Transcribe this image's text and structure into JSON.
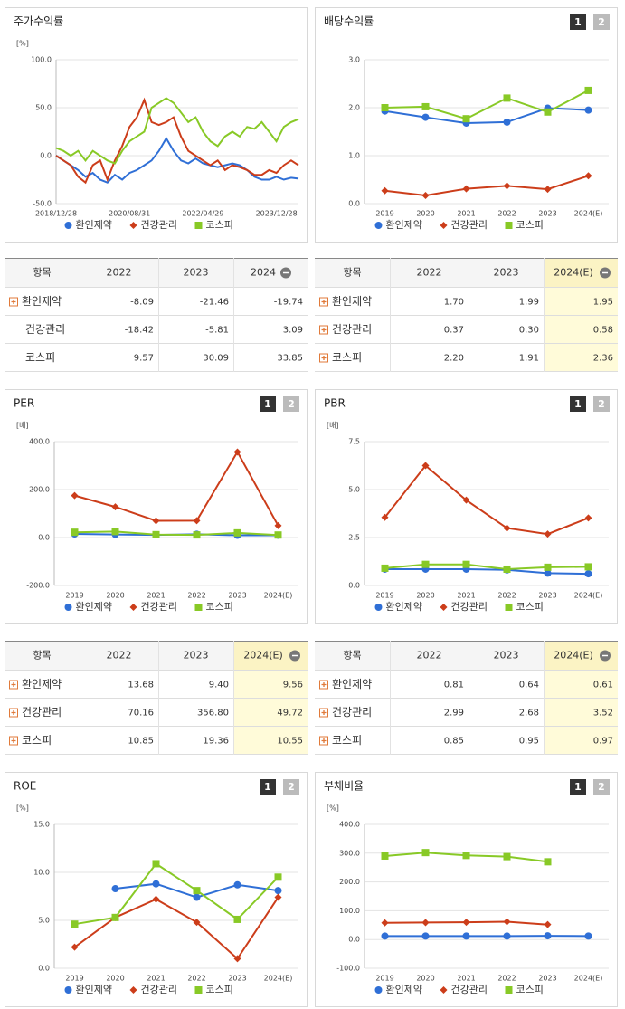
{
  "chart_data": [
    {
      "type": "line",
      "title": "주가수익률",
      "unit": "[%]",
      "categories": [
        "2018/12/28",
        null,
        null,
        null,
        null,
        null,
        null,
        null,
        null,
        null,
        "2020/08/31",
        null,
        null,
        null,
        null,
        null,
        null,
        null,
        null,
        null,
        "2022/04/29",
        null,
        null,
        null,
        null,
        null,
        null,
        null,
        null,
        null,
        "2023/12/28",
        null,
        null,
        null
      ],
      "series": [
        {
          "name": "환인제약",
          "color": "#2f6fd6",
          "values": [
            0,
            -5,
            -10,
            -15,
            -22,
            -18,
            -25,
            -28,
            -20,
            -25,
            -18,
            -15,
            -10,
            -5,
            5,
            18,
            5,
            -5,
            -8,
            -3,
            -8,
            -10,
            -12,
            -10,
            -8,
            -10,
            -15,
            -22,
            -25,
            -25,
            -22,
            -25,
            -23,
            -24
          ]
        },
        {
          "name": "건강관리",
          "color": "#cc3d1a",
          "values": [
            0,
            -5,
            -10,
            -22,
            -28,
            -10,
            -5,
            -25,
            -5,
            10,
            30,
            40,
            58,
            35,
            32,
            35,
            40,
            20,
            5,
            0,
            -5,
            -10,
            -5,
            -15,
            -10,
            -12,
            -15,
            -20,
            -20,
            -15,
            -18,
            -10,
            -5,
            -10
          ]
        },
        {
          "name": "코스피",
          "color": "#88c926",
          "values": [
            8,
            5,
            0,
            5,
            -5,
            5,
            0,
            -5,
            -8,
            5,
            15,
            20,
            25,
            50,
            55,
            60,
            55,
            45,
            35,
            40,
            25,
            15,
            10,
            20,
            25,
            20,
            30,
            28,
            35,
            25,
            15,
            30,
            35,
            38
          ]
        }
      ],
      "ylim": [
        -50,
        100
      ],
      "yticks": [
        {
          "value": -50,
          "label": "-50.0"
        },
        {
          "value": 0,
          "label": "0.0"
        },
        {
          "value": 50,
          "label": "50.0"
        },
        {
          "value": 100,
          "label": "100.0"
        }
      ],
      "markers": false,
      "legend": "bottom"
    },
    {
      "type": "line",
      "title": "배당수익률",
      "buttons": [
        "1",
        "2"
      ],
      "categories": [
        "2019",
        "2020",
        "2021",
        "2022",
        "2023",
        "2024(E)"
      ],
      "series": [
        {
          "name": "환인제약",
          "color": "#2f6fd6",
          "values": [
            1.93,
            1.8,
            1.68,
            1.7,
            1.99,
            1.95
          ]
        },
        {
          "name": "건강관리",
          "color": "#cc3d1a",
          "values": [
            0.27,
            0.17,
            0.31,
            0.37,
            0.3,
            0.58
          ]
        },
        {
          "name": "코스피",
          "color": "#88c926",
          "values": [
            2.0,
            2.02,
            1.77,
            2.2,
            1.91,
            2.36
          ]
        }
      ],
      "ylim": [
        0,
        3
      ],
      "yticks": [
        {
          "value": 0,
          "label": "0.0"
        },
        {
          "value": 1,
          "label": "1.0"
        },
        {
          "value": 2,
          "label": "2.0"
        },
        {
          "value": 3,
          "label": "3.0"
        }
      ],
      "markers": true,
      "legend": "bottom"
    },
    {
      "type": "line",
      "title": "PER",
      "unit": "[배]",
      "buttons": [
        "1",
        "2"
      ],
      "categories": [
        "2019",
        "2020",
        "2021",
        "2022",
        "2023",
        "2024(E)"
      ],
      "series": [
        {
          "name": "환인제약",
          "color": "#2f6fd6",
          "values": [
            15,
            13,
            11,
            13.68,
            9.4,
            9.56
          ]
        },
        {
          "name": "건강관리",
          "color": "#cc3d1a",
          "values": [
            175,
            128,
            70,
            70.16,
            356.8,
            49.72
          ]
        },
        {
          "name": "코스피",
          "color": "#88c926",
          "values": [
            22,
            25,
            12,
            10.85,
            19.36,
            10.55
          ]
        }
      ],
      "ylim": [
        -200,
        400
      ],
      "yticks": [
        {
          "value": -200,
          "label": "-200.0"
        },
        {
          "value": 0,
          "label": "0.0"
        },
        {
          "value": 200,
          "label": "200.0"
        },
        {
          "value": 400,
          "label": "400.0"
        }
      ],
      "markers": true,
      "legend": "bottom"
    },
    {
      "type": "line",
      "title": "PBR",
      "unit": "[배]",
      "buttons": [
        "1",
        "2"
      ],
      "categories": [
        "2019",
        "2020",
        "2021",
        "2022",
        "2023",
        "2024(E)"
      ],
      "series": [
        {
          "name": "환인제약",
          "color": "#2f6fd6",
          "values": [
            0.85,
            0.85,
            0.85,
            0.81,
            0.64,
            0.61
          ]
        },
        {
          "name": "건강관리",
          "color": "#cc3d1a",
          "values": [
            3.55,
            6.25,
            4.45,
            2.99,
            2.68,
            3.52
          ]
        },
        {
          "name": "코스피",
          "color": "#88c926",
          "values": [
            0.9,
            1.1,
            1.1,
            0.85,
            0.95,
            0.97
          ]
        }
      ],
      "ylim": [
        0,
        7.5
      ],
      "yticks": [
        {
          "value": 0,
          "label": "0.0"
        },
        2.5,
        {
          "value": 5,
          "label": "5.0"
        },
        7.5
      ],
      "markers": true,
      "legend": "bottom"
    },
    {
      "type": "line",
      "title": "ROE",
      "unit": "[%]",
      "buttons": [
        "1",
        "2"
      ],
      "categories": [
        "2019",
        "2020",
        "2021",
        "2022",
        "2023",
        "2024(E)"
      ],
      "series": [
        {
          "name": "환인제약",
          "color": "#2f6fd6",
          "values": [
            null,
            8.3,
            8.8,
            7.4,
            8.7,
            8.1
          ]
        },
        {
          "name": "건강관리",
          "color": "#cc3d1a",
          "values": [
            2.2,
            5.3,
            7.2,
            4.8,
            1.0,
            7.4
          ]
        },
        {
          "name": "코스피",
          "color": "#88c926",
          "values": [
            4.6,
            5.3,
            10.9,
            8.1,
            5.1,
            9.5
          ]
        }
      ],
      "ylim": [
        0,
        15
      ],
      "yticks": [
        {
          "value": 0,
          "label": "0.0"
        },
        {
          "value": 5,
          "label": "5.0"
        },
        {
          "value": 10,
          "label": "10.0"
        },
        {
          "value": 15,
          "label": "15.0"
        }
      ],
      "markers": true,
      "legend": "bottom"
    },
    {
      "type": "line",
      "title": "부채비율",
      "unit": "[%]",
      "buttons": [
        "1",
        "2"
      ],
      "categories": [
        "2019",
        "2020",
        "2021",
        "2022",
        "2023",
        "2024(E)"
      ],
      "series": [
        {
          "name": "환인제약",
          "color": "#2f6fd6",
          "values": [
            12,
            12,
            12,
            12,
            13,
            12
          ]
        },
        {
          "name": "건강관리",
          "color": "#cc3d1a",
          "values": [
            58,
            59,
            60,
            62,
            52,
            null
          ]
        },
        {
          "name": "코스피",
          "color": "#88c926",
          "values": [
            290,
            302,
            292,
            288,
            270,
            null
          ]
        }
      ],
      "ylim": [
        -100,
        400
      ],
      "yticks": [
        {
          "value": -100,
          "label": "-100.0"
        },
        {
          "value": 0,
          "label": "0.0"
        },
        {
          "value": 100,
          "label": "100.0"
        },
        {
          "value": 200,
          "label": "200.0"
        },
        {
          "value": 300,
          "label": "300.0"
        },
        {
          "value": 400,
          "label": "400.0"
        }
      ],
      "markers": true,
      "legend": "bottom"
    }
  ],
  "tables": [
    {
      "header": [
        "항목",
        "2022",
        "2023",
        "2024"
      ],
      "collapse_icon": true,
      "highlight_last": false,
      "rows": [
        {
          "name": "환인제약",
          "expandable": true,
          "cells": [
            "-8.09",
            "-21.46",
            "-19.74"
          ]
        },
        {
          "name": "건강관리",
          "expandable": false,
          "cells": [
            "-18.42",
            "-5.81",
            "3.09"
          ]
        },
        {
          "name": "코스피",
          "expandable": false,
          "cells": [
            "9.57",
            "30.09",
            "33.85"
          ]
        }
      ]
    },
    {
      "header": [
        "항목",
        "2022",
        "2023",
        "2024(E)"
      ],
      "collapse_icon": true,
      "highlight_last": true,
      "rows": [
        {
          "name": "환인제약",
          "expandable": true,
          "cells": [
            "1.70",
            "1.99",
            "1.95"
          ]
        },
        {
          "name": "건강관리",
          "expandable": true,
          "cells": [
            "0.37",
            "0.30",
            "0.58"
          ]
        },
        {
          "name": "코스피",
          "expandable": true,
          "cells": [
            "2.20",
            "1.91",
            "2.36"
          ]
        }
      ]
    },
    {
      "header": [
        "항목",
        "2022",
        "2023",
        "2024(E)"
      ],
      "collapse_icon": true,
      "highlight_last": true,
      "rows": [
        {
          "name": "환인제약",
          "expandable": true,
          "cells": [
            "13.68",
            "9.40",
            "9.56"
          ]
        },
        {
          "name": "건강관리",
          "expandable": true,
          "cells": [
            "70.16",
            "356.80",
            "49.72"
          ]
        },
        {
          "name": "코스피",
          "expandable": true,
          "cells": [
            "10.85",
            "19.36",
            "10.55"
          ]
        }
      ]
    },
    {
      "header": [
        "항목",
        "2022",
        "2023",
        "2024(E)"
      ],
      "collapse_icon": true,
      "highlight_last": true,
      "rows": [
        {
          "name": "환인제약",
          "expandable": true,
          "cells": [
            "0.81",
            "0.64",
            "0.61"
          ]
        },
        {
          "name": "건강관리",
          "expandable": true,
          "cells": [
            "2.99",
            "2.68",
            "3.52"
          ]
        },
        {
          "name": "코스피",
          "expandable": true,
          "cells": [
            "0.85",
            "0.95",
            "0.97"
          ]
        }
      ]
    }
  ]
}
